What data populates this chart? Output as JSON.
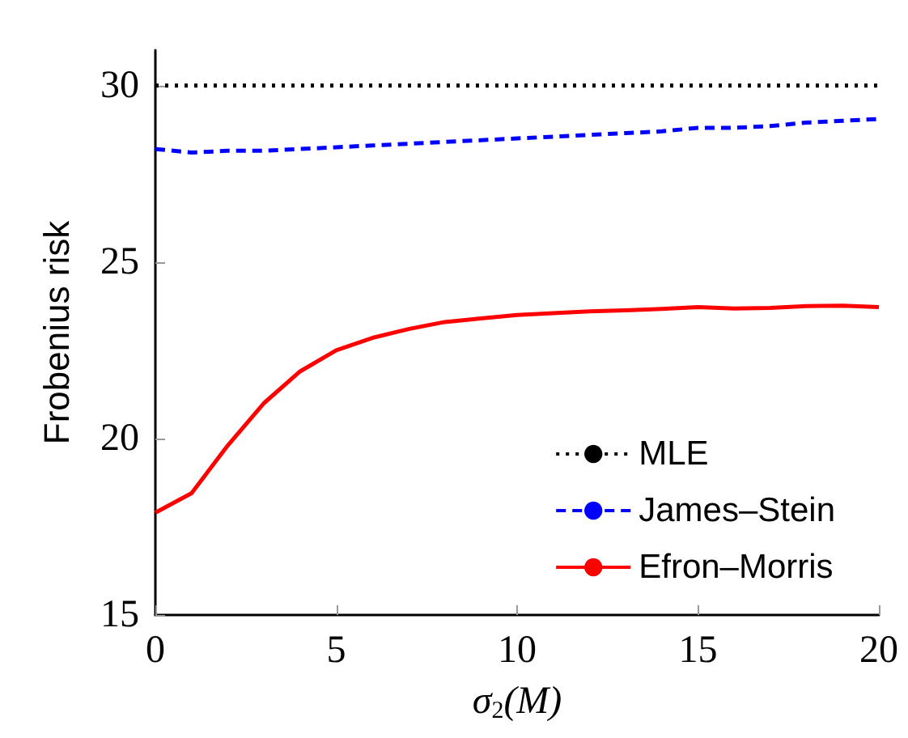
{
  "chart_data": {
    "type": "line",
    "xlabel": "σ$_{2}$(M)",
    "ylabel": "Frobenius risk",
    "x": [
      0,
      1,
      2,
      3,
      4,
      5,
      6,
      7,
      8,
      9,
      10,
      11,
      12,
      13,
      14,
      15,
      16,
      17,
      18,
      19,
      20
    ],
    "series": [
      {
        "name": "MLE",
        "color": "#000000",
        "line_style": "dotted",
        "values": [
          30,
          30,
          30,
          30,
          30,
          30,
          30,
          30,
          30,
          30,
          30,
          30,
          30,
          30,
          30,
          30,
          30,
          30,
          30,
          30,
          30
        ]
      },
      {
        "name": "James–Stein",
        "color": "#0000ff",
        "line_style": "dashed",
        "values": [
          28.2,
          28.1,
          28.15,
          28.15,
          28.2,
          28.25,
          28.3,
          28.35,
          28.4,
          28.45,
          28.5,
          28.55,
          28.6,
          28.65,
          28.7,
          28.8,
          28.8,
          28.85,
          28.95,
          29.0,
          29.05
        ]
      },
      {
        "name": "Efron–Morris",
        "color": "#ff0000",
        "line_style": "solid",
        "values": [
          17.9,
          18.45,
          19.8,
          21.0,
          21.9,
          22.5,
          22.85,
          23.1,
          23.3,
          23.4,
          23.5,
          23.55,
          23.6,
          23.63,
          23.67,
          23.72,
          23.68,
          23.7,
          23.75,
          23.76,
          23.72
        ]
      }
    ],
    "xlim": [
      0,
      20
    ],
    "xticks": [
      0,
      5,
      10,
      15,
      20
    ],
    "ylim": [
      15,
      31
    ],
    "yticks": [
      15,
      20,
      25,
      30
    ],
    "grid": false,
    "legend": "bottom right",
    "marker": "none"
  }
}
